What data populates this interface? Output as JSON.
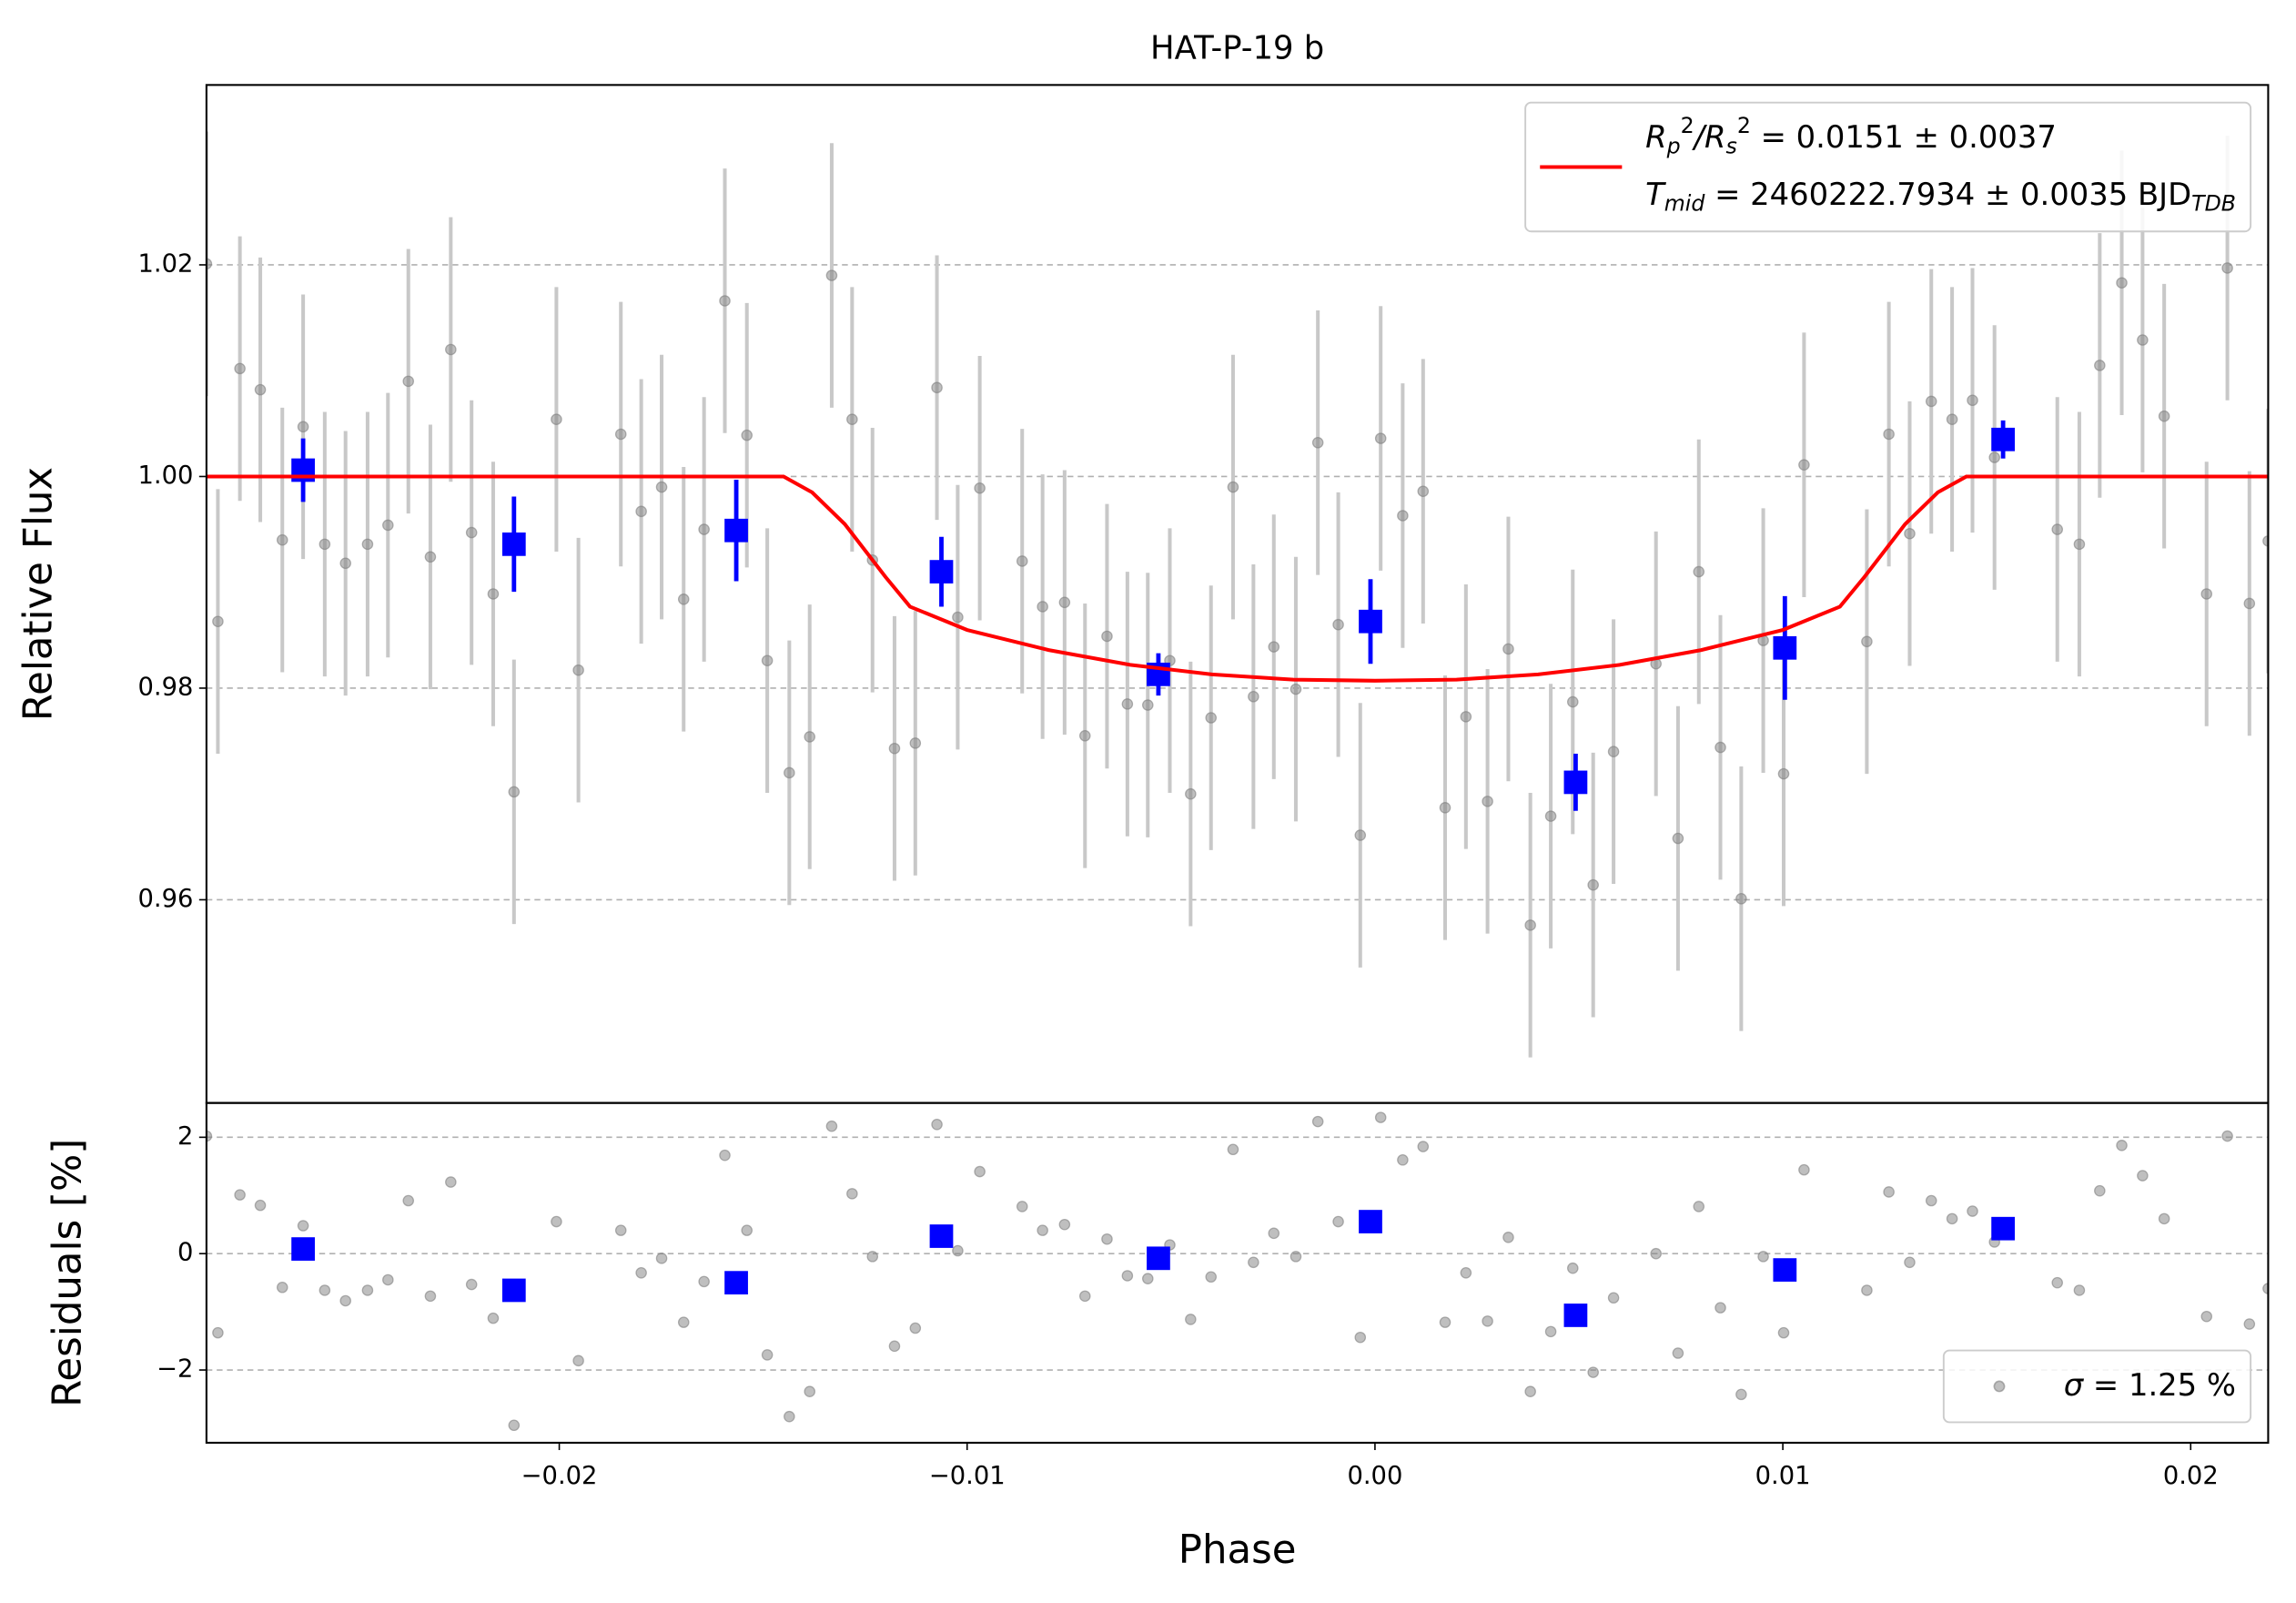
{
  "chart_data": [
    {
      "type": "scatter",
      "title": "HAT-P-19 b",
      "ylabel": "Relative Flux",
      "xlim": [
        -0.02865,
        0.0219
      ],
      "ylim": [
        0.9408,
        1.037
      ],
      "yticks": [
        0.96,
        0.98,
        {
          "value": 1.0,
          "label": "1.00"
        },
        1.02
      ],
      "grid": true,
      "legend": "upper right",
      "series": [
        {
          "marker": "circle",
          "color": "#808080",
          "error_color": "#c8c8c8",
          "yerr": 0.0125,
          "x": [
            -0.02865,
            -0.02837,
            -0.02783,
            -0.02733,
            -0.02679,
            -0.02628,
            -0.02575,
            -0.02524,
            -0.0247,
            -0.0242,
            -0.0237,
            -0.02316,
            -0.02266,
            -0.02215,
            -0.02162,
            -0.02111,
            -0.02007,
            -0.01953,
            -0.01849,
            -0.01799,
            -0.01749,
            -0.01695,
            -0.01645,
            -0.01594,
            -0.0154,
            -0.0149,
            -0.01436,
            -0.01386,
            -0.01332,
            -0.01282,
            -0.01232,
            -0.01178,
            -0.01127,
            -0.01074,
            -0.01023,
            -0.00969,
            -0.00865,
            -0.00815,
            -0.00761,
            -0.00711,
            -0.00657,
            -0.00607,
            -0.00557,
            -0.00503,
            -0.00452,
            -0.00402,
            -0.00348,
            -0.00298,
            -0.00248,
            -0.00194,
            -0.0014,
            -0.0009,
            -0.00036,
            0.00014,
            0.00068,
            0.00118,
            0.00172,
            0.00223,
            0.00276,
            0.00327,
            0.00381,
            0.00431,
            0.00485,
            0.00535,
            0.00585,
            0.00689,
            0.00743,
            0.00794,
            0.00847,
            0.00898,
            0.00952,
            0.01002,
            0.01052,
            0.01206,
            0.0126,
            0.01311,
            0.01364,
            0.01415,
            0.01465,
            0.01519,
            0.01673,
            0.01727,
            0.01777,
            0.01831,
            0.01882,
            0.01935,
            0.02039,
            0.0209,
            0.02144,
            0.0219
          ],
          "values": [
            1.0201,
            0.9863,
            1.0102,
            1.0082,
            0.994,
            1.0047,
            0.9936,
            0.9918,
            0.9936,
            0.9954,
            1.009,
            0.9924,
            1.012,
            0.9947,
            0.9889,
            0.9702,
            1.0054,
            0.9817,
            1.004,
            0.9967,
            0.999,
            0.9884,
            0.995,
            1.0166,
            1.0039,
            0.9826,
            0.972,
            0.9754,
            1.019,
            1.0054,
            0.9921,
            0.9743,
            0.9748,
            1.0084,
            0.9867,
            0.9989,
            0.992,
            0.9877,
            0.9881,
            0.9755,
            0.9849,
            0.9785,
            0.9784,
            0.9826,
            0.97,
            0.9772,
            0.999,
            0.9792,
            0.9839,
            0.9799,
            1.0032,
            0.986,
            0.9661,
            1.0036,
            0.9963,
            0.9986,
            0.9687,
            0.9773,
            0.9693,
            0.9837,
            0.9576,
            0.9679,
            0.9787,
            0.9614,
            0.974,
            0.9823,
            0.9658,
            0.991,
            0.9744,
            0.9601,
            0.9845,
            0.9719,
            1.0011,
            0.9844,
            1.004,
            0.9946,
            1.0071,
            1.0054,
            1.0072,
            1.0018,
            0.995,
            0.9936,
            1.0105,
            1.0183,
            1.0129,
            1.0057,
            0.9889,
            1.0197,
            0.988,
            0.9939
          ]
        },
        {
          "marker": "square",
          "color": "#0000ff",
          "error_color": "#0000ff",
          "x": [
            -0.02628,
            -0.02111,
            -0.01566,
            -0.01063,
            -0.00531,
            -0.00011,
            0.00492,
            0.01005,
            0.0154
          ],
          "values": [
            1.0006,
            0.9936,
            0.9949,
            0.991,
            0.9813,
            0.9863,
            0.9711,
            0.9838,
            1.0035
          ],
          "errors": [
            0.003,
            0.0045,
            0.0048,
            0.0033,
            0.002,
            0.004,
            0.0027,
            0.0049,
            0.0018
          ]
        },
        {
          "type": "line",
          "color": "#ff0000",
          "x": [
            -0.02865,
            -0.0145,
            -0.0138,
            -0.013,
            -0.012,
            -0.0114,
            -0.01,
            -0.008,
            -0.006,
            -0.004,
            -0.002,
            0,
            0.002,
            0.004,
            0.006,
            0.008,
            0.01,
            0.0114,
            0.012,
            0.013,
            0.0138,
            0.0145,
            0.0219
          ],
          "values": [
            1,
            1,
            0.9985,
            0.9955,
            0.9905,
            0.9877,
            0.9855,
            0.9836,
            0.9822,
            0.9813,
            0.9808,
            0.9807,
            0.9808,
            0.9813,
            0.9822,
            0.9836,
            0.9855,
            0.9877,
            0.9905,
            0.9955,
            0.9985,
            1,
            1
          ],
          "legend": [
            [
              {
                "text": "R",
                "italic": true
              },
              {
                "text": "p",
                "italic": true,
                "shift": "sub"
              },
              {
                "text": "2",
                "shift": "sup"
              },
              {
                "text": "/",
                "italic": true
              },
              {
                "text": "R",
                "italic": true
              },
              {
                "text": "s",
                "italic": true,
                "shift": "sub"
              },
              {
                "text": "2",
                "shift": "sup"
              },
              {
                "text": " = 0.0151 ± 0.0037"
              }
            ],
            [
              {
                "text": "T",
                "italic": true
              },
              {
                "text": "mid",
                "italic": true,
                "shift": "sub"
              },
              {
                "text": " = 2460222.7934 ± 0.0035 BJD"
              },
              {
                "text": "TDB",
                "italic": true,
                "shift": "sub"
              }
            ]
          ]
        }
      ]
    },
    {
      "type": "scatter",
      "xlabel": "Phase",
      "ylabel": "Residuals [%]",
      "xlim": [
        -0.02865,
        0.0219
      ],
      "ylim": [
        -3.25,
        2.59
      ],
      "xticks": [
        {
          "value": -0.02,
          "label": "−0.02"
        },
        {
          "value": -0.01,
          "label": "−0.01"
        },
        {
          "value": 0,
          "label": "0.00"
        },
        0.01,
        0.02
      ],
      "yticks": [
        {
          "value": -2,
          "label": "−2"
        },
        0,
        2
      ],
      "grid": true,
      "legend": "lower right",
      "series": [
        {
          "marker": "circle",
          "color": "#808080",
          "x": [
            -0.02865,
            -0.02837,
            -0.02783,
            -0.02733,
            -0.02679,
            -0.02628,
            -0.02575,
            -0.02524,
            -0.0247,
            -0.0242,
            -0.0237,
            -0.02316,
            -0.02266,
            -0.02215,
            -0.02162,
            -0.02111,
            -0.02007,
            -0.01953,
            -0.01849,
            -0.01799,
            -0.01749,
            -0.01695,
            -0.01645,
            -0.01594,
            -0.0154,
            -0.0149,
            -0.01436,
            -0.01386,
            -0.01332,
            -0.01282,
            -0.01232,
            -0.01178,
            -0.01127,
            -0.01074,
            -0.01023,
            -0.00969,
            -0.00865,
            -0.00815,
            -0.00761,
            -0.00711,
            -0.00657,
            -0.00607,
            -0.00557,
            -0.00503,
            -0.00452,
            -0.00402,
            -0.00348,
            -0.00298,
            -0.00248,
            -0.00194,
            -0.0014,
            -0.0009,
            -0.00036,
            0.00014,
            0.00068,
            0.00118,
            0.00172,
            0.00223,
            0.00276,
            0.00327,
            0.00381,
            0.00431,
            0.00485,
            0.00535,
            0.00585,
            0.00689,
            0.00743,
            0.00794,
            0.00847,
            0.00898,
            0.00952,
            0.01002,
            0.01052,
            0.01206,
            0.0126,
            0.01311,
            0.01364,
            0.01415,
            0.01465,
            0.01519,
            0.01673,
            0.01727,
            0.01777,
            0.01831,
            0.01882,
            0.01935,
            0.02039,
            0.0209,
            0.02144,
            0.0219
          ],
          "values": [
            2.02,
            -1.36,
            1.01,
            0.83,
            -0.58,
            0.48,
            -0.63,
            -0.81,
            -0.63,
            -0.45,
            0.91,
            -0.73,
            1.23,
            -0.53,
            -1.11,
            -2.95,
            0.55,
            -1.84,
            0.4,
            -0.33,
            -0.08,
            -1.18,
            -0.48,
            1.69,
            0.4,
            -1.74,
            -2.8,
            -2.37,
            2.19,
            1.03,
            -0.05,
            -1.59,
            -1.28,
            2.22,
            0.05,
            1.41,
            0.81,
            0.4,
            0.5,
            -0.73,
            0.25,
            -0.38,
            -0.43,
            0.15,
            -1.13,
            -0.4,
            1.79,
            -0.15,
            0.35,
            -0.05,
            2.27,
            0.55,
            -1.44,
            2.34,
            1.61,
            1.84,
            -1.18,
            -0.33,
            -1.16,
            0.28,
            -2.37,
            -1.34,
            -0.25,
            -2.04,
            -0.76,
            0,
            -1.71,
            0.81,
            -0.93,
            -2.42,
            -0.05,
            -1.36,
            1.44,
            -0.63,
            1.06,
            -0.15,
            0.91,
            0.6,
            0.73,
            0.2,
            -0.5,
            -0.63,
            1.08,
            1.86,
            1.34,
            0.6,
            -1.08,
            2.02,
            -1.21,
            -0.6
          ],
          "legend": [
            [
              {
                "text": "σ",
                "italic": true
              },
              {
                "text": " = 1.25 %"
              }
            ]
          ]
        },
        {
          "marker": "square",
          "color": "#0000ff",
          "x": [
            -0.02628,
            -0.02111,
            -0.01566,
            -0.01063,
            -0.00531,
            -0.00011,
            0.00492,
            0.01005,
            0.0154
          ],
          "values": [
            0.08,
            -0.63,
            -0.5,
            0.3,
            -0.08,
            0.55,
            -1.06,
            -0.28,
            0.43
          ]
        }
      ]
    }
  ]
}
